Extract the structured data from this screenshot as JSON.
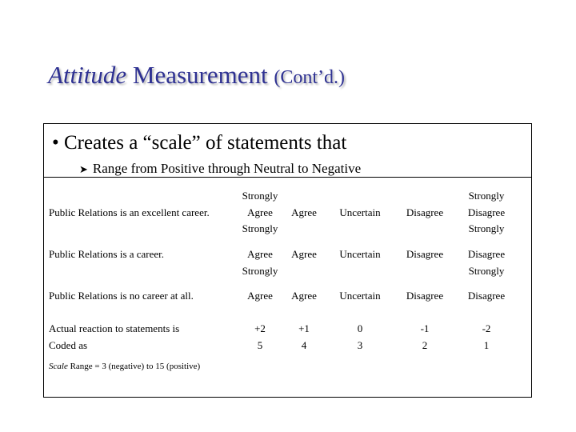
{
  "slide": {
    "title_emphasis": "Attitude",
    "title_main": "Measurement",
    "title_suffix": "(Cont’d.)",
    "bullet": "• Creates a “scale” of statements that",
    "subbullet": "Range from Positive through Neutral to Negative",
    "subbullet_icon": "arrow-bullet-icon",
    "colors": {
      "title": "#2e3192",
      "text": "#000000",
      "border": "#000000"
    }
  },
  "table": {
    "rows": [
      {
        "label": [
          "Public Relations is an excellent career."
        ],
        "cells": [
          [
            "Strongly",
            "Agree",
            "Strongly"
          ],
          [
            "Agree"
          ],
          [
            "Uncertain"
          ],
          [
            "Disagree"
          ],
          [
            "Strongly",
            "Disagree",
            "Strongly"
          ]
        ]
      },
      {
        "label": [
          "Public Relations is a career."
        ],
        "cells": [
          [
            "Agree",
            "Strongly"
          ],
          [
            "Agree"
          ],
          [
            "Uncertain"
          ],
          [
            "Disagree"
          ],
          [
            "Disagree",
            "Strongly"
          ]
        ]
      },
      {
        "label": [
          "Public Relations is no career at all."
        ],
        "cells": [
          [
            "Agree"
          ],
          [
            "Agree"
          ],
          [
            "Uncertain"
          ],
          [
            "Disagree"
          ],
          [
            "Disagree"
          ]
        ]
      },
      {
        "label": [
          "Actual reaction to statements is",
          "Coded as"
        ],
        "cells": [
          [
            "+2",
            "5"
          ],
          [
            "+1",
            "4"
          ],
          [
            "0",
            "3"
          ],
          [
            "-1",
            "2"
          ],
          [
            "-2",
            "1"
          ]
        ]
      }
    ],
    "scale_word": "Scale",
    "scale_rest": " Range = 3 (negative) to 15 (positive)"
  }
}
